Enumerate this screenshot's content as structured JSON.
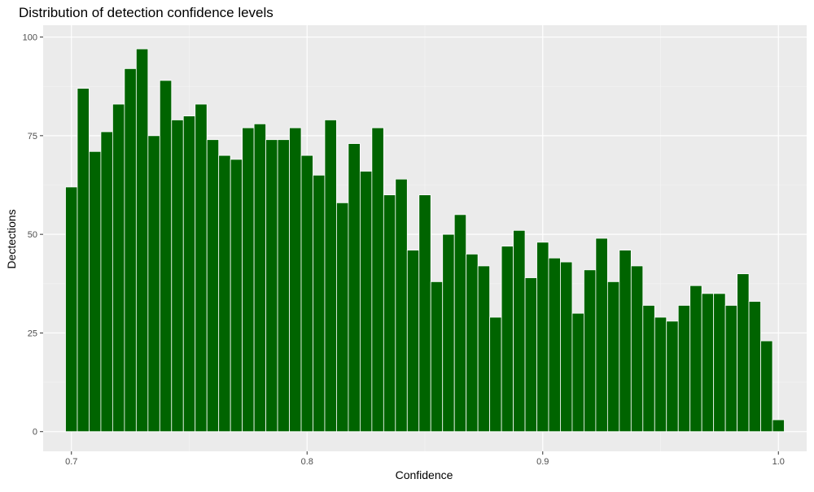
{
  "chart_data": {
    "type": "bar",
    "title": "Distribution of detection confidence levels",
    "xlabel": "Confidence",
    "ylabel": "Dectections",
    "xlim": [
      0.688,
      1.012
    ],
    "ylim": [
      -5,
      103
    ],
    "x_ticks": [
      0.7,
      0.8,
      0.9,
      1.0
    ],
    "x_tick_labels": [
      "0.7",
      "0.8",
      "0.9",
      "1.0"
    ],
    "y_ticks": [
      0,
      25,
      50,
      75,
      100
    ],
    "y_tick_labels": [
      "0",
      "25",
      "50",
      "75",
      "100"
    ],
    "bin_start": 0.6975,
    "bin_width": 0.005,
    "values": [
      62,
      87,
      71,
      76,
      83,
      92,
      97,
      75,
      89,
      79,
      80,
      83,
      74,
      70,
      69,
      77,
      78,
      74,
      74,
      77,
      70,
      65,
      79,
      58,
      73,
      66,
      77,
      60,
      64,
      46,
      60,
      38,
      50,
      55,
      45,
      42,
      29,
      47,
      51,
      39,
      48,
      44,
      43,
      30,
      41,
      49,
      38,
      46,
      42,
      32,
      29,
      28,
      32,
      37,
      35,
      35,
      32,
      40,
      33,
      23,
      3
    ],
    "grid": true,
    "legend": "none",
    "colors": {
      "bar_fill": "#006400",
      "bar_outline": "#ffffff",
      "panel_background": "#ebebeb",
      "grid_major": "#ffffff",
      "grid_minor": "#f5f5f5",
      "tick_text": "#4d4d4d"
    }
  }
}
